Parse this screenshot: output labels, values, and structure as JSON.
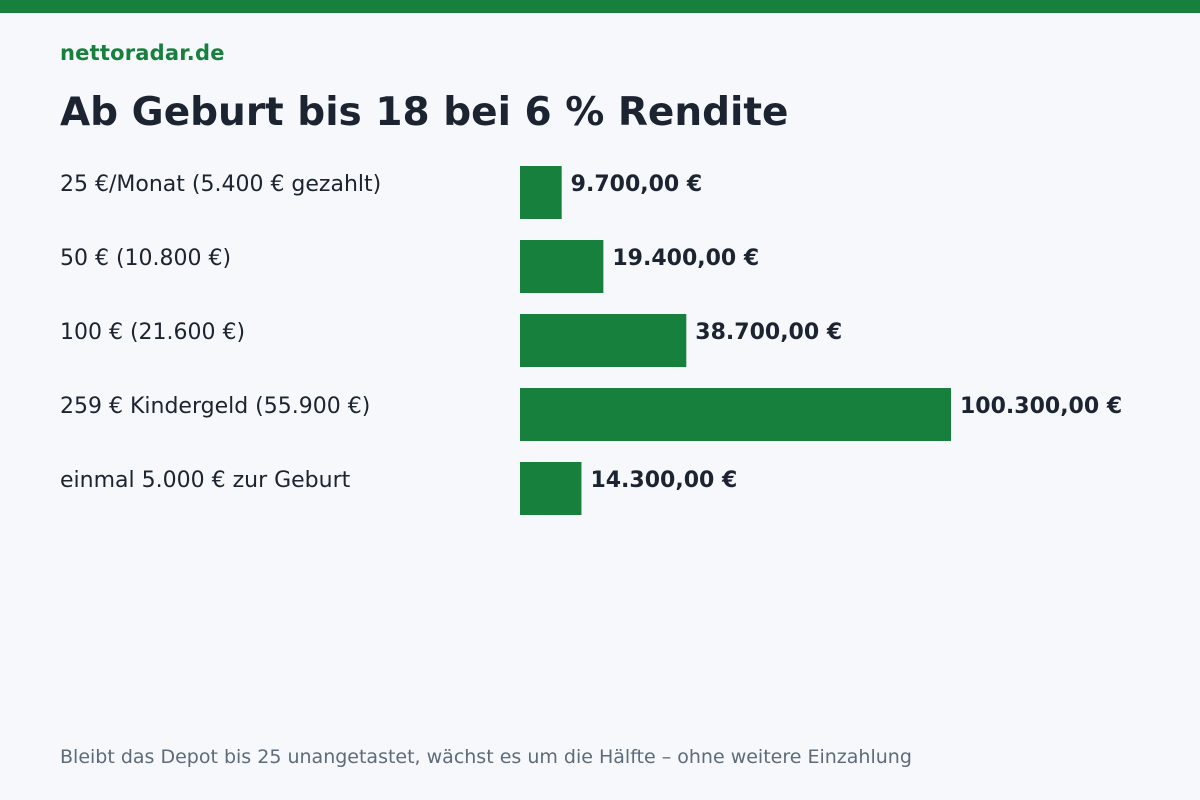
{
  "brand": "nettoradar.de",
  "title": "Ab Geburt bis 18 bei 6 % Rendite",
  "footnote": "Bleibt das Depot bis 25 unangetastet, wächst es um die Hälfte – ohne weitere Einzahlung",
  "colors": {
    "accent": "#17803d",
    "text": "#1c2331",
    "muted": "#5d6b7b",
    "background": "#f6f8fb"
  },
  "chart_data": {
    "type": "bar",
    "orientation": "horizontal",
    "title": "Ab Geburt bis 18 bei 6 % Rendite",
    "categories": [
      "25 €/Monat (5.400 € gezahlt)",
      "50 € (10.800 €)",
      "100 € (21.600 €)",
      "259 € Kindergeld (55.900 €)",
      "einmal 5.000 € zur Geburt"
    ],
    "values": [
      9700,
      19400,
      38700,
      100300,
      14300
    ],
    "value_labels": [
      "9.700,00 €",
      "19.400,00 €",
      "38.700,00 €",
      "100.300,00 €",
      "14.300,00 €"
    ],
    "grid": false,
    "legend": "none"
  }
}
